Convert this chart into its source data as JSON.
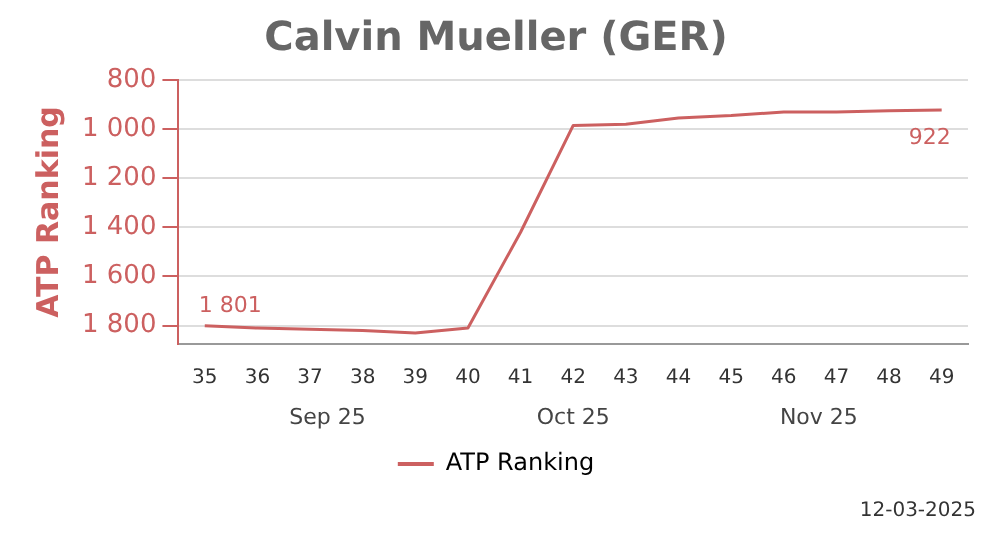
{
  "chart_data": {
    "type": "line",
    "title": "Calvin Mueller (GER)",
    "ylabel": "ATP Ranking",
    "categories": [
      "35",
      "36",
      "37",
      "38",
      "39",
      "40",
      "41",
      "42",
      "43",
      "44",
      "45",
      "46",
      "47",
      "48",
      "49"
    ],
    "series": [
      {
        "name": "ATP Ranking",
        "color": "#cc6060",
        "values": [
          1801,
          1810,
          1815,
          1820,
          1830,
          1810,
          1420,
          985,
          980,
          955,
          945,
          930,
          930,
          925,
          922
        ],
        "value_labels": [
          "1 801",
          null,
          null,
          null,
          null,
          null,
          null,
          null,
          null,
          null,
          null,
          null,
          null,
          null,
          "922"
        ]
      }
    ],
    "ylim": [
      1875,
      800
    ],
    "yticks": [
      800,
      {
        "value": 1000,
        "label": "1 000"
      },
      {
        "value": 1200,
        "label": "1 200"
      },
      {
        "value": 1400,
        "label": "1 400"
      },
      {
        "value": 1600,
        "label": "1 600"
      },
      {
        "value": 1800,
        "label": "1 800"
      }
    ],
    "grid": "y",
    "legend": "bottom",
    "marker": "none",
    "line_style": "solid",
    "annotations": [
      "Sep 25",
      "Oct 25",
      "Nov 25",
      "12-03-2025"
    ]
  }
}
